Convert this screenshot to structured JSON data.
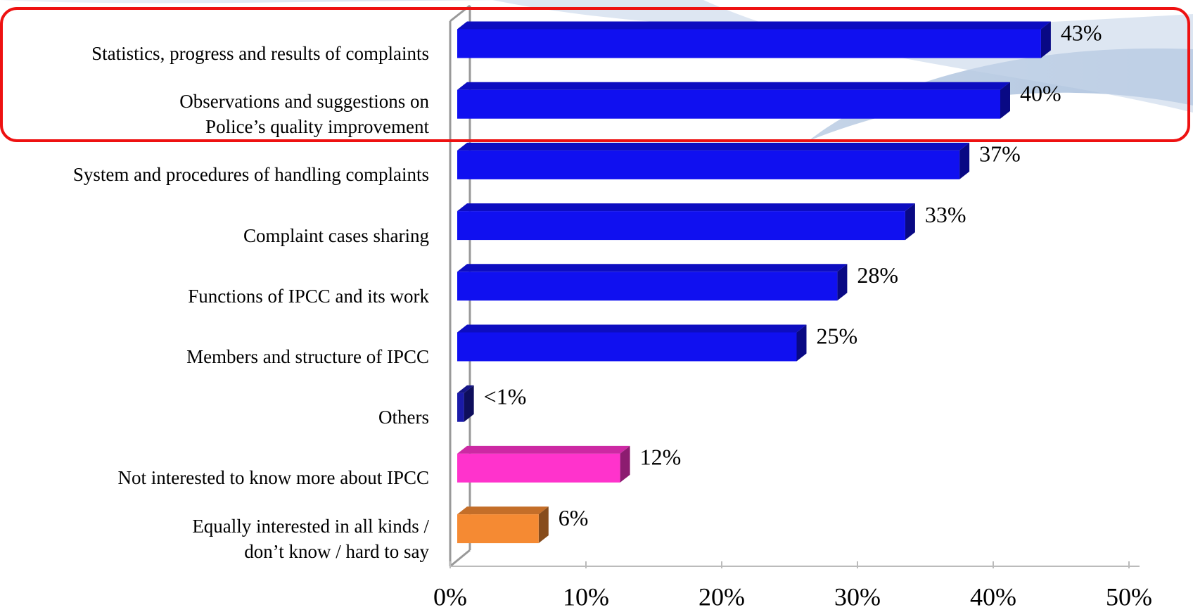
{
  "chart_data": {
    "type": "bar",
    "orientation": "horizontal",
    "categories": [
      "Statistics, progress and results of complaints",
      "Observations and suggestions on\nPolice’s quality improvement",
      "System and procedures of handling complaints",
      "Complaint cases sharing",
      "Functions of IPCC and its work",
      "Members and structure of IPCC",
      "Others",
      "Not interested to know more about IPCC",
      "Equally interested in all kinds /\ndon’t know / hard to say"
    ],
    "values": [
      43,
      40,
      37,
      33,
      28,
      25,
      0.5,
      12,
      6
    ],
    "value_labels": [
      "43%",
      "40%",
      "37%",
      "33%",
      "28%",
      "25%",
      "<1%",
      "12%",
      "6%"
    ],
    "colors": [
      "#1010f0",
      "#1010f0",
      "#1010f0",
      "#1010f0",
      "#1010f0",
      "#1010f0",
      "#1a1aa8",
      "#ff33cc",
      "#f58a33"
    ],
    "xlim": [
      0,
      50
    ],
    "xticks": [
      {
        "value": 0,
        "label": "0%"
      },
      {
        "value": 10,
        "label": "10%"
      },
      {
        "value": 20,
        "label": "20%"
      },
      {
        "value": 30,
        "label": "30%"
      },
      {
        "value": 40,
        "label": "40%"
      },
      {
        "value": 50,
        "label": "50%"
      }
    ]
  }
}
